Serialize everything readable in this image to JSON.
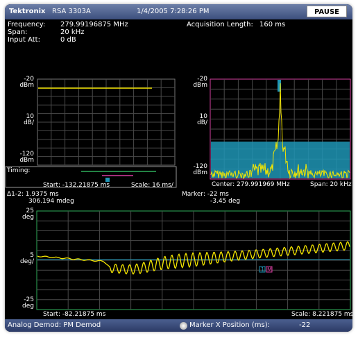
{
  "header": {
    "brand": "Tektronix",
    "model": "RSA 3303A",
    "datetime": "1/4/2005 7:28:26 PM",
    "pause_label": "PAUSE"
  },
  "settings": {
    "frequency_label": "Frequency:",
    "frequency_value": "279.99196875 MHz",
    "span_label": "Span:",
    "span_value": "20 kHz",
    "input_att_label": "Input Att:",
    "input_att_value": "0 dB",
    "acq_label": "Acquisition Length:",
    "acq_value": "160 ms"
  },
  "timing_panel": {
    "top_unit": "-20",
    "top_unit2": "dBm",
    "mid_unit": "10",
    "mid_unit2": "dB/",
    "bot_unit": "-120",
    "bot_unit2": "dBm",
    "timing_label": "Timing:",
    "start_label": "Start: -132.21875 ms",
    "scale_label": "Scale: 16 ms/"
  },
  "spectrum_panel": {
    "top_unit": "-20",
    "top_unit2": "dBm",
    "mid_unit": "10",
    "mid_unit2": "dB/",
    "bot_unit": "-120",
    "bot_unit2": "dBm",
    "center_label": "Center: 279.991969 MHz",
    "span_label": "Span: 20 kHz"
  },
  "demod_panel": {
    "delta_label": "Δ1-2: 1.9375 ms",
    "delta_value": "306.194 mdeg",
    "marker_label": "Marker: -22 ms",
    "marker_value": "-3.45 deg",
    "top_unit": "25",
    "top_unit2": "deg",
    "mid_unit": "5",
    "mid_unit2": "deg/",
    "bot_unit": "-25",
    "bot_unit2": "deg",
    "start_label": "Start: -82.21875 ms",
    "scale_label": "Scale: 8.221875 ms/",
    "marker1": "1",
    "marker2": "M"
  },
  "status": {
    "mode": "Analog Demod: PM Demod",
    "knob_label": "Marker X Position (ms):",
    "knob_value": "-22"
  },
  "colors": {
    "trace": "#f5e600",
    "grid": "#4a4a4a",
    "spectrum_border": "#d63fa0",
    "demod_border": "#2fae5a",
    "band_fill": "#1e95b5",
    "timing_green": "#2fae5a",
    "timing_magenta": "#d63fa0"
  }
}
